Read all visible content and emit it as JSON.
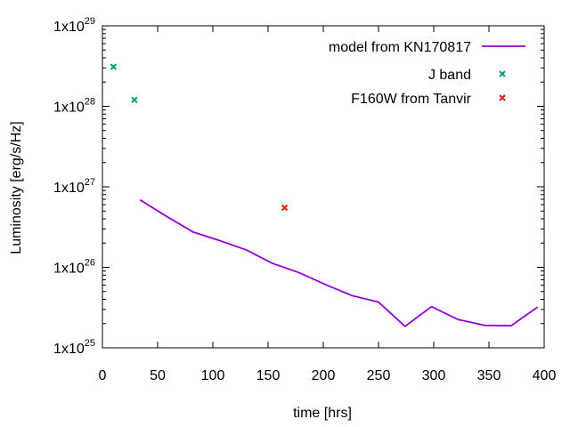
{
  "chart_data": {
    "type": "line",
    "title": "",
    "xlabel": "time [hrs]",
    "ylabel": "Luminosity [erg/s/Hz]",
    "xlim": [
      0,
      400
    ],
    "ylim": [
      1e+25,
      1e+29
    ],
    "y_scale": "log",
    "grid": false,
    "legend_position": "top-right",
    "x_ticks": [
      0,
      50,
      100,
      150,
      200,
      250,
      300,
      350,
      400
    ],
    "x_tick_labels": [
      "0",
      "50",
      "100",
      "150",
      "200",
      "250",
      "300",
      "350",
      "400"
    ],
    "y_ticks": [
      1e+25,
      1e+26,
      1e+27,
      1e+28,
      1e+29
    ],
    "y_tick_labels": [
      {
        "base": "1x10",
        "exp": "25"
      },
      {
        "base": "1x10",
        "exp": "26"
      },
      {
        "base": "1x10",
        "exp": "27"
      },
      {
        "base": "1x10",
        "exp": "28"
      },
      {
        "base": "1x10",
        "exp": "29"
      }
    ],
    "series": [
      {
        "name": "model from KN170817",
        "kind": "line",
        "color": "#9400d3",
        "x": [
          34,
          58,
          82,
          106,
          130,
          154,
          178,
          202,
          226,
          250,
          274,
          298,
          322,
          346,
          370,
          394
        ],
        "y": [
          6.9e+26,
          4.3e+26,
          2.75e+26,
          2.15e+26,
          1.65e+26,
          1.12e+26,
          8.6e+25,
          6.1e+25,
          4.45e+25,
          3.7e+25,
          1.85e+25,
          3.25e+25,
          2.25e+25,
          1.9e+25,
          1.88e+25,
          3.2e+25
        ]
      },
      {
        "name": "J band",
        "kind": "points",
        "marker": "x",
        "color": "#009e73",
        "x": [
          10,
          29
        ],
        "y": [
          3.1e+28,
          1.2e+28
        ]
      },
      {
        "name": "F160W from Tanvir",
        "kind": "points",
        "marker": "x",
        "color": "#e51e10",
        "x": [
          165
        ],
        "y": [
          5.5e+26
        ]
      }
    ]
  }
}
